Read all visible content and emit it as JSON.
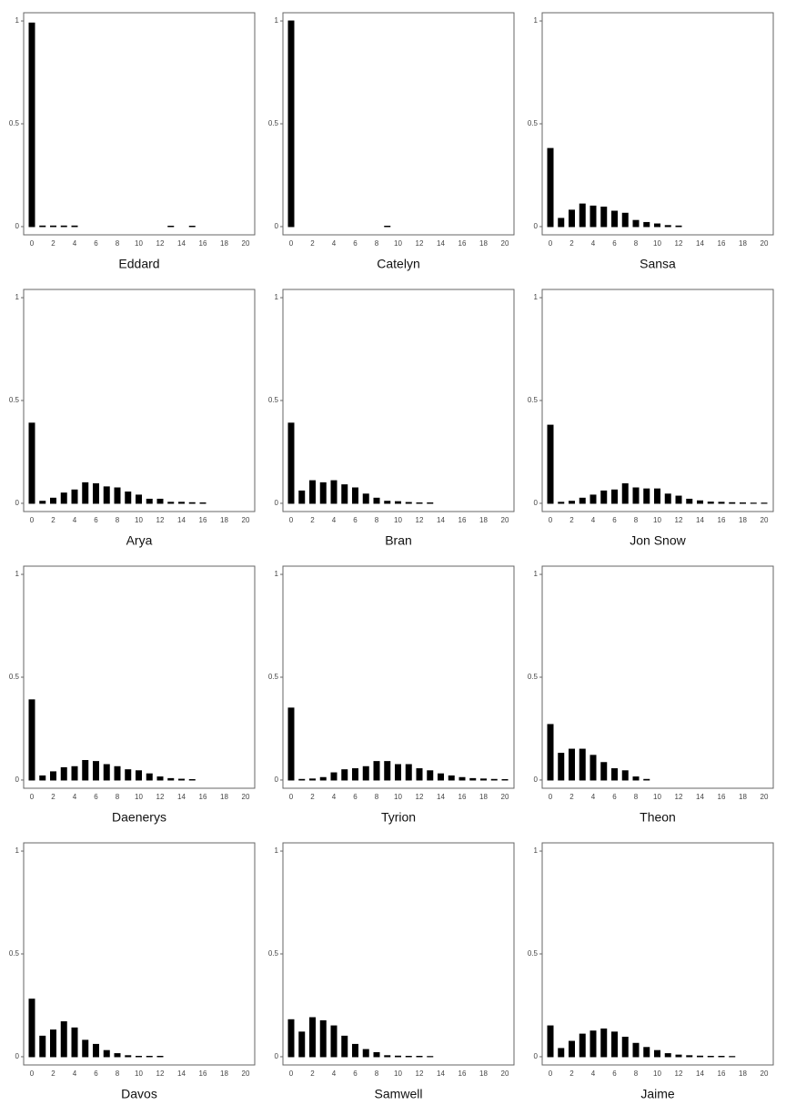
{
  "chart_data": [
    {
      "type": "bar",
      "title": "Eddard",
      "categories": [
        "0",
        null,
        "2",
        null,
        "4",
        null,
        "6",
        null,
        "8",
        null,
        "10",
        null,
        "12",
        null,
        "14",
        null,
        "16",
        null,
        "18",
        null,
        "20"
      ],
      "values": [
        0.99,
        0.003,
        0.003,
        0.003,
        0.003,
        0,
        0,
        0,
        0,
        0,
        0,
        0,
        0,
        0.002,
        0,
        0.002,
        0,
        0,
        0,
        0,
        0
      ],
      "color": "#000000",
      "ylim": [
        -0.04,
        1.04
      ],
      "yticks": [
        0,
        0.5,
        1
      ]
    },
    {
      "type": "bar",
      "title": "Catelyn",
      "categories": [
        "0",
        null,
        "2",
        null,
        "4",
        null,
        "6",
        null,
        "8",
        null,
        "10",
        null,
        "12",
        null,
        "14",
        null,
        "16",
        null,
        "18",
        null,
        "20"
      ],
      "values": [
        1,
        0,
        0,
        0,
        0,
        0,
        0,
        0,
        0,
        0.002,
        0,
        0,
        0,
        0,
        0,
        0,
        0,
        0,
        0,
        0,
        0
      ],
      "color": "#000000",
      "ylim": [
        -0.04,
        1.04
      ],
      "yticks": [
        0,
        0.5,
        1
      ]
    },
    {
      "type": "bar",
      "title": "Sansa",
      "categories": [
        "0",
        null,
        "2",
        null,
        "4",
        null,
        "6",
        null,
        "8",
        null,
        "10",
        null,
        "12",
        null,
        "14",
        null,
        "16",
        null,
        "18",
        null,
        "20"
      ],
      "values": [
        0.38,
        0.04,
        0.08,
        0.11,
        0.1,
        0.095,
        0.075,
        0.065,
        0.03,
        0.02,
        0.013,
        0.005,
        0.003,
        0,
        0,
        0,
        0,
        0,
        0,
        0,
        0
      ],
      "color": "#000000",
      "ylim": [
        -0.04,
        1.04
      ],
      "yticks": [
        0,
        0.5,
        1
      ]
    },
    {
      "type": "bar",
      "title": "Arya",
      "categories": [
        "0",
        null,
        "2",
        null,
        "4",
        null,
        "6",
        null,
        "8",
        null,
        "10",
        null,
        "12",
        null,
        "14",
        null,
        "16",
        null,
        "18",
        null,
        "20"
      ],
      "values": [
        0.39,
        0.01,
        0.025,
        0.05,
        0.065,
        0.1,
        0.095,
        0.08,
        0.075,
        0.055,
        0.04,
        0.02,
        0.02,
        0.005,
        0.005,
        0.003,
        0.002,
        0,
        0,
        0,
        0
      ],
      "color": "#000000",
      "ylim": [
        -0.04,
        1.04
      ],
      "yticks": [
        0,
        0.5,
        1
      ]
    },
    {
      "type": "bar",
      "title": "Bran",
      "categories": [
        "0",
        null,
        "2",
        null,
        "4",
        null,
        "6",
        null,
        "8",
        null,
        "10",
        null,
        "12",
        null,
        "14",
        null,
        "16",
        null,
        "18",
        null,
        "20"
      ],
      "values": [
        0.39,
        0.06,
        0.11,
        0.1,
        0.11,
        0.09,
        0.075,
        0.045,
        0.025,
        0.01,
        0.008,
        0.004,
        0.002,
        0.002,
        0,
        0,
        0,
        0,
        0,
        0,
        0
      ],
      "color": "#000000",
      "ylim": [
        -0.04,
        1.04
      ],
      "yticks": [
        0,
        0.5,
        1
      ]
    },
    {
      "type": "bar",
      "title": "Jon Snow",
      "categories": [
        "0",
        null,
        "2",
        null,
        "4",
        null,
        "6",
        null,
        "8",
        null,
        "10",
        null,
        "12",
        null,
        "14",
        null,
        "16",
        null,
        "18",
        null,
        "20"
      ],
      "values": [
        0.38,
        0.005,
        0.01,
        0.025,
        0.04,
        0.06,
        0.065,
        0.095,
        0.075,
        0.07,
        0.07,
        0.045,
        0.035,
        0.02,
        0.012,
        0.006,
        0.005,
        0.003,
        0.002,
        0.001,
        0.001
      ],
      "color": "#000000",
      "ylim": [
        -0.04,
        1.04
      ],
      "yticks": [
        0,
        0.5,
        1
      ]
    },
    {
      "type": "bar",
      "title": "Daenerys",
      "categories": [
        "0",
        null,
        "2",
        null,
        "4",
        null,
        "6",
        null,
        "8",
        null,
        "10",
        null,
        "12",
        null,
        "14",
        null,
        "16",
        null,
        "18",
        null,
        "20"
      ],
      "values": [
        0.39,
        0.02,
        0.04,
        0.06,
        0.065,
        0.095,
        0.09,
        0.075,
        0.065,
        0.05,
        0.045,
        0.03,
        0.015,
        0.007,
        0.004,
        0.002,
        0,
        0,
        0,
        0,
        0
      ],
      "color": "#000000",
      "ylim": [
        -0.04,
        1.04
      ],
      "yticks": [
        0,
        0.5,
        1
      ]
    },
    {
      "type": "bar",
      "title": "Tyrion",
      "categories": [
        "0",
        null,
        "2",
        null,
        "4",
        null,
        "6",
        null,
        "8",
        null,
        "10",
        null,
        "12",
        null,
        "14",
        null,
        "16",
        null,
        "18",
        null,
        "20"
      ],
      "values": [
        0.35,
        0.003,
        0.005,
        0.012,
        0.035,
        0.05,
        0.055,
        0.065,
        0.09,
        0.09,
        0.075,
        0.075,
        0.055,
        0.045,
        0.03,
        0.02,
        0.012,
        0.007,
        0.005,
        0.003,
        0.002
      ],
      "color": "#000000",
      "ylim": [
        -0.04,
        1.04
      ],
      "yticks": [
        0,
        0.5,
        1
      ]
    },
    {
      "type": "bar",
      "title": "Theon",
      "categories": [
        "0",
        null,
        "2",
        null,
        "4",
        null,
        "6",
        null,
        "8",
        null,
        "10",
        null,
        "12",
        null,
        "14",
        null,
        "16",
        null,
        "18",
        null,
        "20"
      ],
      "values": [
        0.27,
        0.13,
        0.15,
        0.15,
        0.12,
        0.085,
        0.055,
        0.045,
        0.015,
        0.003,
        0,
        0,
        0,
        0,
        0,
        0,
        0,
        0,
        0,
        0,
        0
      ],
      "color": "#000000",
      "ylim": [
        -0.04,
        1.04
      ],
      "yticks": [
        0,
        0.5,
        1
      ]
    },
    {
      "type": "bar",
      "title": "Davos",
      "categories": [
        "0",
        null,
        "2",
        null,
        "4",
        null,
        "6",
        null,
        "8",
        null,
        "10",
        null,
        "12",
        null,
        "14",
        null,
        "16",
        null,
        "18",
        null,
        "20"
      ],
      "values": [
        0.28,
        0.1,
        0.13,
        0.17,
        0.14,
        0.08,
        0.06,
        0.03,
        0.015,
        0.005,
        0.002,
        0.002,
        0.002,
        0,
        0,
        0,
        0,
        0,
        0,
        0,
        0
      ],
      "color": "#000000",
      "ylim": [
        -0.04,
        1.04
      ],
      "yticks": [
        0,
        0.5,
        1
      ]
    },
    {
      "type": "bar",
      "title": "Samwell",
      "categories": [
        "0",
        null,
        "2",
        null,
        "4",
        null,
        "6",
        null,
        "8",
        null,
        "10",
        null,
        "12",
        null,
        "14",
        null,
        "16",
        null,
        "18",
        null,
        "20"
      ],
      "values": [
        0.18,
        0.12,
        0.19,
        0.175,
        0.15,
        0.1,
        0.06,
        0.035,
        0.02,
        0.005,
        0.003,
        0.002,
        0.002,
        0.001,
        0,
        0,
        0,
        0,
        0,
        0,
        0
      ],
      "color": "#000000",
      "ylim": [
        -0.04,
        1.04
      ],
      "yticks": [
        0,
        0.5,
        1
      ]
    },
    {
      "type": "bar",
      "title": "Jaime",
      "categories": [
        "0",
        null,
        "2",
        null,
        "4",
        null,
        "6",
        null,
        "8",
        null,
        "10",
        null,
        "12",
        null,
        "14",
        null,
        "16",
        null,
        "18",
        null,
        "20"
      ],
      "values": [
        0.15,
        0.04,
        0.075,
        0.11,
        0.125,
        0.135,
        0.12,
        0.095,
        0.065,
        0.045,
        0.03,
        0.015,
        0.008,
        0.005,
        0.003,
        0.002,
        0.002,
        0.001,
        0,
        0,
        0
      ],
      "color": "#000000",
      "ylim": [
        -0.04,
        1.04
      ],
      "yticks": [
        0,
        0.5,
        1
      ]
    }
  ]
}
